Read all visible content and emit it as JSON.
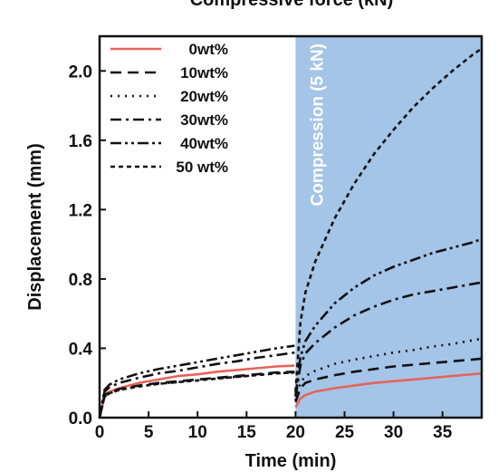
{
  "chart_data": {
    "type": "line",
    "title": "Compressive force (kN)",
    "xlabel": "Time (min)",
    "ylabel": "Displacement (mm)",
    "xlim": [
      0,
      39
    ],
    "ylim": [
      0,
      2.2
    ],
    "xticks": [
      "0",
      "5",
      "10",
      "15",
      "20",
      "25",
      "30",
      "35"
    ],
    "yticks": [
      "0.0",
      "0.4",
      "0.8",
      "1.2",
      "1.6",
      "2.0"
    ],
    "legend_position": "top-left",
    "shaded_region": {
      "from": 20,
      "to": 39,
      "label": "Compression (5 kN)",
      "color": "#a4c4e8"
    },
    "x": [
      0,
      0.5,
      1,
      2,
      4,
      6,
      8,
      10,
      12,
      14,
      16,
      18,
      19.9,
      20,
      20.5,
      21,
      22,
      24,
      26,
      28,
      30,
      32,
      34,
      36,
      38,
      39
    ],
    "series": [
      {
        "name": "0wt%",
        "color": "#e8635a",
        "dash": "solid",
        "values": [
          0,
          0.13,
          0.15,
          0.17,
          0.2,
          0.22,
          0.24,
          0.25,
          0.265,
          0.275,
          0.285,
          0.295,
          0.3,
          0.06,
          0.11,
          0.13,
          0.15,
          0.17,
          0.185,
          0.2,
          0.21,
          0.22,
          0.23,
          0.24,
          0.25,
          0.255
        ]
      },
      {
        "name": "10wt%",
        "color": "#111111",
        "dash": "long-dash",
        "values": [
          0,
          0.13,
          0.145,
          0.165,
          0.185,
          0.2,
          0.21,
          0.22,
          0.23,
          0.24,
          0.25,
          0.26,
          0.265,
          0.09,
          0.17,
          0.2,
          0.22,
          0.245,
          0.265,
          0.28,
          0.295,
          0.305,
          0.315,
          0.325,
          0.335,
          0.34
        ]
      },
      {
        "name": "20wt%",
        "color": "#111111",
        "dash": "dotted",
        "values": [
          0,
          0.12,
          0.14,
          0.16,
          0.18,
          0.195,
          0.205,
          0.215,
          0.225,
          0.235,
          0.245,
          0.255,
          0.26,
          0.1,
          0.2,
          0.24,
          0.27,
          0.31,
          0.335,
          0.355,
          0.375,
          0.39,
          0.41,
          0.425,
          0.445,
          0.455
        ]
      },
      {
        "name": "30wt%",
        "color": "#111111",
        "dash": "dash-dot",
        "values": [
          0,
          0.15,
          0.175,
          0.2,
          0.23,
          0.255,
          0.27,
          0.29,
          0.31,
          0.325,
          0.345,
          0.36,
          0.375,
          0.12,
          0.3,
          0.37,
          0.43,
          0.52,
          0.59,
          0.64,
          0.68,
          0.71,
          0.73,
          0.75,
          0.77,
          0.78
        ]
      },
      {
        "name": "40wt%",
        "color": "#111111",
        "dash": "dash-dot-dot",
        "values": [
          0,
          0.16,
          0.19,
          0.22,
          0.255,
          0.28,
          0.3,
          0.32,
          0.34,
          0.36,
          0.38,
          0.4,
          0.415,
          0.13,
          0.35,
          0.44,
          0.53,
          0.66,
          0.75,
          0.82,
          0.87,
          0.91,
          0.95,
          0.98,
          1.01,
          1.03
        ]
      },
      {
        "name": "50 wt%",
        "color": "#111111",
        "dash": "short-dash",
        "values": [
          0,
          0.12,
          0.14,
          0.16,
          0.18,
          0.195,
          0.205,
          0.215,
          0.225,
          0.235,
          0.245,
          0.255,
          0.26,
          0.15,
          0.55,
          0.72,
          0.9,
          1.15,
          1.35,
          1.52,
          1.66,
          1.79,
          1.9,
          2.0,
          2.09,
          2.13
        ]
      }
    ]
  }
}
